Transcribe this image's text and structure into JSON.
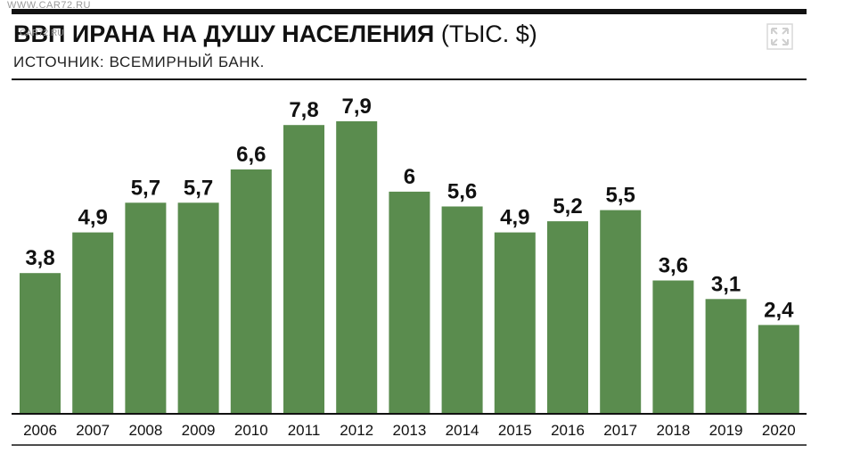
{
  "watermark": {
    "top": "WWW.CAR72.RU",
    "overlay": "CAR72.RU"
  },
  "header": {
    "title_bold": "ВВП ИРАНА НА ДУШУ НАСЕЛЕНИЯ",
    "title_unit": "(ТЫС. $)",
    "source": "ИСТОЧНИК: ВСЕМИРНЫЙ БАНК.",
    "expand_icon": "expand-arrows-icon"
  },
  "colors": {
    "bar": "#5a8c4e",
    "text": "#111111",
    "rule": "#111111"
  },
  "chart_data": {
    "type": "bar",
    "title": "ВВП ИРАНА НА ДУШУ НАСЕЛЕНИЯ (ТЫС. $)",
    "subtitle": "ИСТОЧНИК: ВСЕМИРНЫЙ БАНК.",
    "xlabel": "",
    "ylabel": "",
    "categories": [
      "2006",
      "2007",
      "2008",
      "2009",
      "2010",
      "2011",
      "2012",
      "2013",
      "2014",
      "2015",
      "2016",
      "2017",
      "2018",
      "2019",
      "2020"
    ],
    "values": [
      3.8,
      4.9,
      5.7,
      5.7,
      6.6,
      7.8,
      7.9,
      6,
      5.6,
      4.9,
      5.2,
      5.5,
      3.6,
      3.1,
      2.4
    ],
    "value_labels": [
      "3,8",
      "4,9",
      "5,7",
      "5,7",
      "6,6",
      "7,8",
      "7,9",
      "6",
      "5,6",
      "4,9",
      "5,2",
      "5,5",
      "3,6",
      "3,1",
      "2,4"
    ],
    "ylim": [
      0,
      7.9
    ],
    "grid": false,
    "legend": "none"
  }
}
